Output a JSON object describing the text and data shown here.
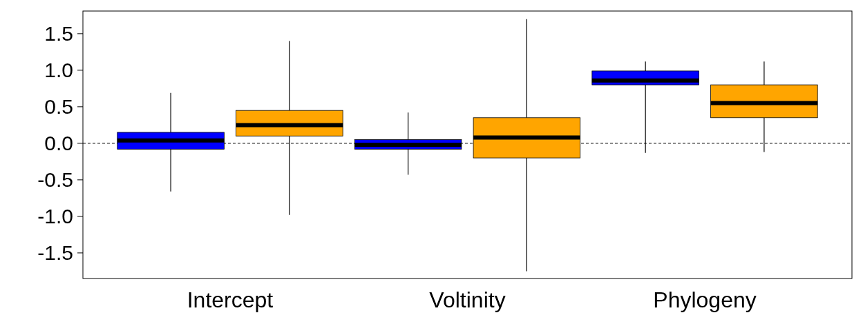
{
  "chart_data": {
    "type": "box",
    "categories": [
      "Intercept",
      "Voltinity",
      "Phylogeny"
    ],
    "ylim": [
      -1.85,
      1.81
    ],
    "yticks": [
      {
        "value": -1.5,
        "label": "-1.5"
      },
      {
        "value": -1,
        "label": "-1.0"
      },
      {
        "value": -0.5,
        "label": "-0.5"
      },
      {
        "value": 0,
        "label": "0.0"
      },
      {
        "value": 0.5,
        "label": "0.5"
      },
      {
        "value": 1,
        "label": "1.0"
      },
      {
        "value": 1.5,
        "label": "1.5"
      }
    ],
    "ref_lines": [
      {
        "axis": "y",
        "value": 0,
        "line_style": "dashed",
        "color": "#000000"
      }
    ],
    "series": [
      {
        "color": "#0000ff",
        "boxes": [
          {
            "low": -0.66,
            "q1": -0.08,
            "median": 0.04,
            "q3": 0.15,
            "high": 0.69
          },
          {
            "low": -0.43,
            "q1": -0.08,
            "median": -0.02,
            "q3": 0.05,
            "high": 0.42
          },
          {
            "low": -0.13,
            "q1": 0.8,
            "median": 0.86,
            "q3": 0.99,
            "high": 1.12
          }
        ]
      },
      {
        "color": "#ffa500",
        "boxes": [
          {
            "low": -0.98,
            "q1": 0.1,
            "median": 0.25,
            "q3": 0.45,
            "high": 1.4
          },
          {
            "low": -1.75,
            "q1": -0.2,
            "median": 0.08,
            "q3": 0.35,
            "high": 1.7
          },
          {
            "low": -0.12,
            "q1": 0.35,
            "median": 0.55,
            "q3": 0.8,
            "high": 1.12
          }
        ]
      }
    ]
  }
}
